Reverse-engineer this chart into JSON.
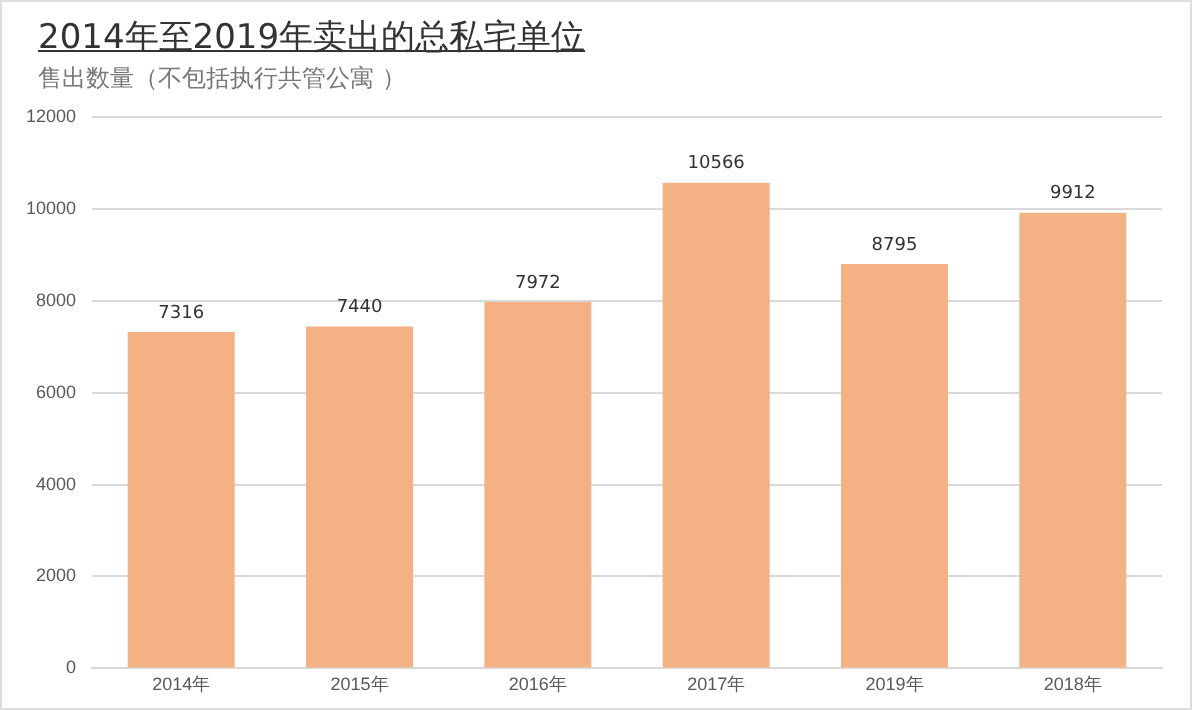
{
  "chart_data": {
    "type": "bar",
    "title": "2014年至2019年卖出的总私宅单位",
    "subtitle": "售出数量（不包括执行共管公寓 ）",
    "categories": [
      "2014年",
      "2015年",
      "2016年",
      "2017年",
      "2019年",
      "2018年"
    ],
    "values": [
      7316,
      7440,
      7972,
      10566,
      8795,
      9912
    ],
    "color": "#f4b183",
    "ylim": [
      0,
      12000
    ],
    "yticks": [
      0,
      2000,
      4000,
      6000,
      8000,
      10000,
      12000
    ],
    "grid": "y",
    "data_labels": true
  }
}
